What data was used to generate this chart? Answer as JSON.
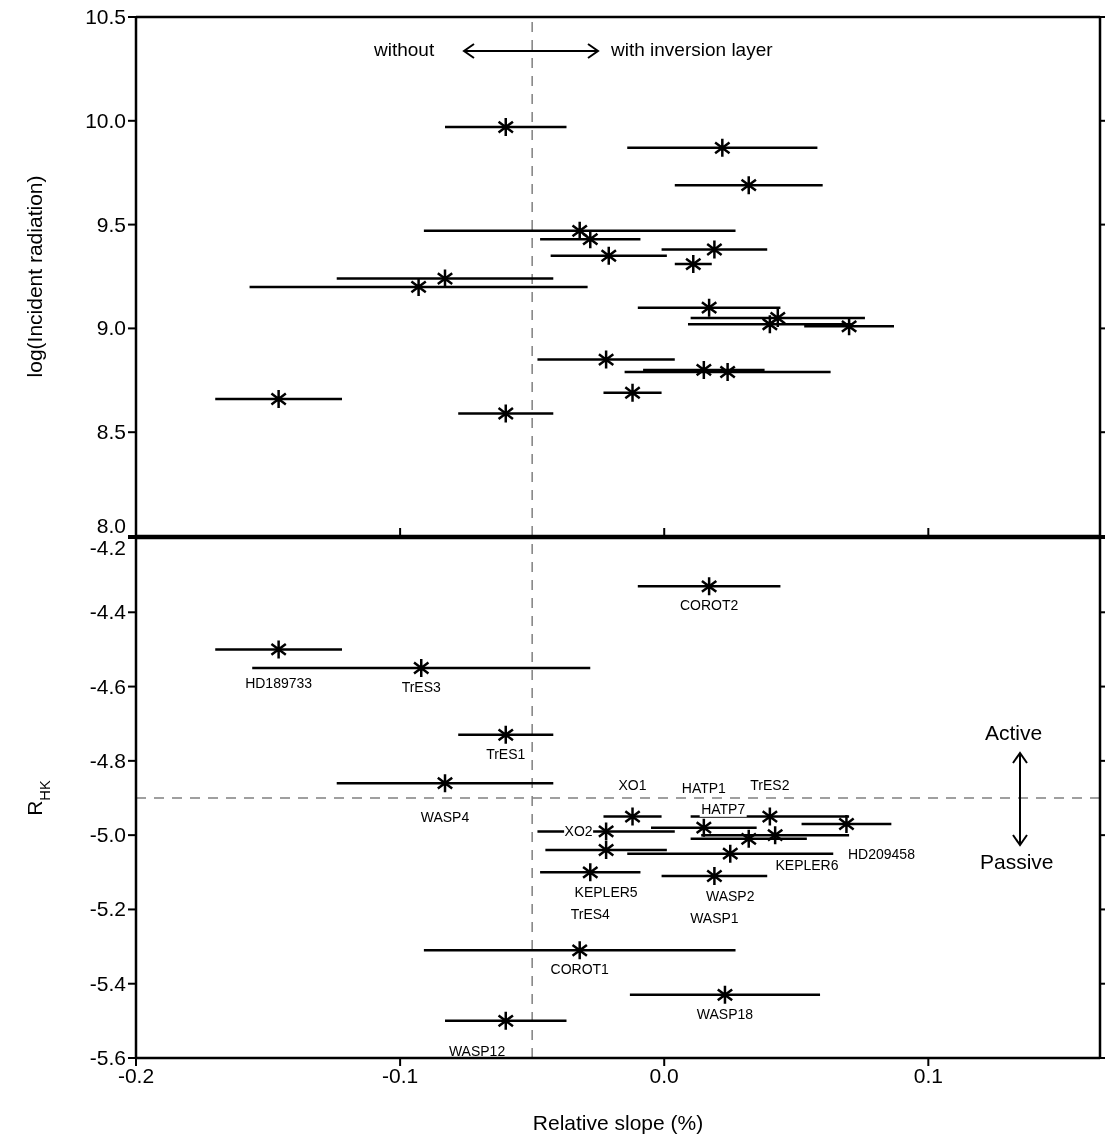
{
  "chart_data": [
    {
      "type": "scatter",
      "ylabel": "log(Incident radiation)",
      "marker": "cross",
      "color": "#000000",
      "tick_labels": "y",
      "x": [
        -0.06,
        0.022,
        0.032,
        -0.032,
        -0.028,
        -0.021,
        0.019,
        0.011,
        -0.083,
        -0.093,
        0.017,
        0.043,
        0.04,
        0.07,
        -0.022,
        0.015,
        0.024,
        -0.012,
        -0.146,
        -0.06
      ],
      "values": [
        9.97,
        9.87,
        9.69,
        9.47,
        9.43,
        9.35,
        9.38,
        9.31,
        9.24,
        9.2,
        9.1,
        9.05,
        9.02,
        9.01,
        8.85,
        8.8,
        8.79,
        8.69,
        8.66,
        8.59
      ],
      "xerrors": [
        0.023,
        0.036,
        0.028,
        0.059,
        0.019,
        0.022,
        0.02,
        0.007,
        0.041,
        0.064,
        0.027,
        0.033,
        0.031,
        0.017,
        0.026,
        0.023,
        0.039,
        0.011,
        0.024,
        0.018
      ],
      "xlim": [
        -0.2,
        0.165
      ],
      "xticks": [
        -0.2,
        -0.1,
        0,
        0.1
      ],
      "ylim": [
        8.0,
        10.5
      ],
      "yticks": [
        {
          "value": 8,
          "label": "8.0"
        },
        8.5,
        {
          "value": 9,
          "label": "9.0"
        },
        9.5,
        {
          "value": 10,
          "label": "10.0"
        },
        10.5
      ],
      "ref_lines": [
        {
          "axis": "x",
          "value": -0.05,
          "label": null,
          "color": "#808080",
          "line_style": "dashed"
        }
      ],
      "annotations": [
        "without",
        "with inversion layer"
      ]
    },
    {
      "type": "scatter",
      "xlabel": "Relative slope (%)",
      "ylabel": "R$_{HK}$",
      "marker": "cross",
      "color": "#000000",
      "x": [
        0.017,
        -0.146,
        -0.092,
        -0.06,
        -0.083,
        -0.012,
        -0.022,
        -0.022,
        -0.028,
        0.015,
        0.04,
        0.069,
        0.042,
        0.032,
        0.025,
        0.019,
        -0.032,
        0.023,
        -0.06
      ],
      "values": [
        -4.33,
        -4.5,
        -4.55,
        -4.73,
        -4.86,
        -4.95,
        -4.99,
        -5.04,
        -5.1,
        -4.98,
        -4.95,
        -4.97,
        -5.0,
        -5.01,
        -5.05,
        -5.11,
        -5.31,
        -5.43,
        -5.5
      ],
      "xerrors": [
        0.027,
        0.024,
        0.064,
        0.018,
        0.041,
        0.011,
        0.026,
        0.023,
        0.019,
        0.02,
        0.03,
        0.017,
        0.028,
        0.022,
        0.039,
        0.02,
        0.059,
        0.036,
        0.023
      ],
      "xlim": [
        -0.2,
        0.165
      ],
      "xticks": [
        -0.2,
        -0.1,
        {
          "value": 0,
          "label": "0.0"
        },
        0.1
      ],
      "ylim": [
        -5.6,
        -4.2
      ],
      "yticks": [
        -5.6,
        -5.4,
        -5.2,
        {
          "value": -5,
          "label": "-5.0"
        },
        -4.8,
        -4.6,
        -4.4,
        -4.2
      ],
      "ref_lines": [
        {
          "axis": "x",
          "value": -0.05,
          "label": null,
          "color": "#808080",
          "line_style": "dashed"
        },
        {
          "axis": "y",
          "value": -4.9,
          "label": null,
          "color": "#808080",
          "line_style": "dashed"
        }
      ],
      "annotations": [
        "Active",
        "Passive",
        {
          "text": "COROT2",
          "x": 0.017,
          "y": -4.33
        },
        {
          "text": "HD189733",
          "x": -0.146,
          "y": -4.5
        },
        {
          "text": "TrES3",
          "x": -0.092,
          "y": -4.55
        },
        {
          "text": "TrES1",
          "x": -0.06,
          "y": -4.73
        },
        {
          "text": "WASP4",
          "x": -0.083,
          "y": -4.86
        },
        {
          "text": "XO1",
          "x": -0.012,
          "y": -4.95
        },
        {
          "text": "XO2",
          "x": -0.022,
          "y": -4.99
        },
        {
          "text": "KEPLER5",
          "x": -0.022,
          "y": -5.04
        },
        {
          "text": "TrES4",
          "x": -0.028,
          "y": -5.1
        },
        {
          "text": "HATP1",
          "x": 0.015,
          "y": -4.98
        },
        {
          "text": "TrES2",
          "x": 0.04,
          "y": -4.95
        },
        {
          "text": "HD209458",
          "x": 0.069,
          "y": -4.97
        },
        {
          "text": "KEPLER6",
          "x": 0.042,
          "y": -5.0
        },
        {
          "text": "HATP7",
          "x": 0.032,
          "y": -5.01
        },
        {
          "text": "WASP2",
          "x": 0.025,
          "y": -5.05
        },
        {
          "text": "WASP1",
          "x": 0.019,
          "y": -5.11
        },
        {
          "text": "COROT1",
          "x": -0.032,
          "y": -5.31
        },
        {
          "text": "WASP18",
          "x": 0.023,
          "y": -5.43
        },
        {
          "text": "WASP12",
          "x": -0.06,
          "y": -5.5
        }
      ]
    }
  ]
}
